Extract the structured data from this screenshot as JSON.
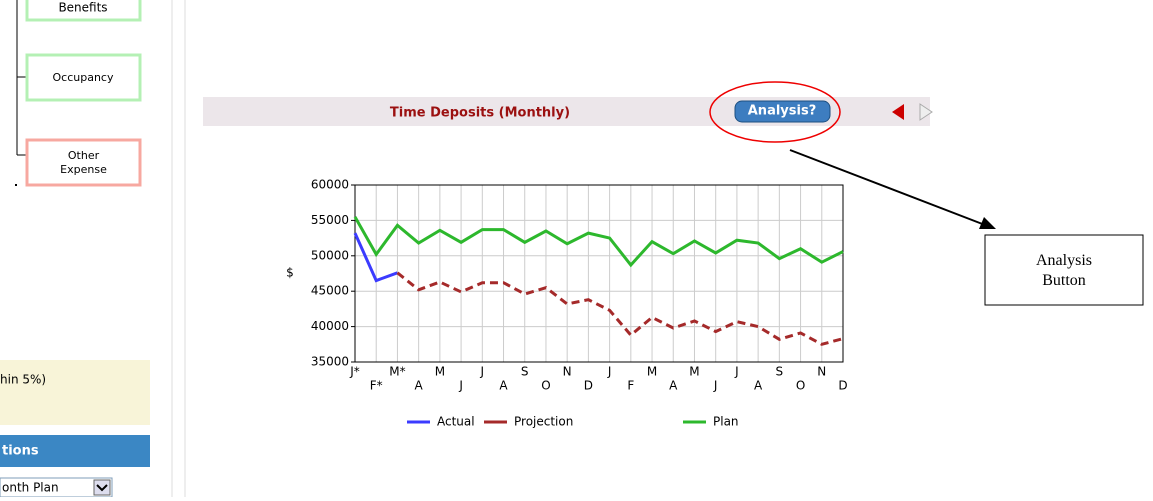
{
  "sidebar": {
    "tree_items": [
      "Benefits",
      "Occupancy",
      "Other Expense"
    ],
    "note": "hin 5%)",
    "section_header": "tions",
    "select_value": "onth Plan"
  },
  "panel": {
    "header_title": "Time Deposits (Monthly)",
    "analysis_button": "Analysis?"
  },
  "annotation": {
    "callout": "Analysis Button"
  },
  "chart_data": {
    "type": "line",
    "ylabel": "$",
    "categories": [
      "J*",
      "F*",
      "M*",
      "A",
      "M",
      "J",
      "J",
      "A",
      "S",
      "O",
      "N",
      "D",
      "J",
      "F",
      "M",
      "A",
      "M",
      "J",
      "J",
      "A",
      "S",
      "O",
      "N",
      "D"
    ],
    "series": [
      {
        "name": "Actual",
        "color": "#3b3bff",
        "dashed": false,
        "values": [
          53200,
          46500,
          47600,
          null,
          null,
          null,
          null,
          null,
          null,
          null,
          null,
          null,
          null,
          null,
          null,
          null,
          null,
          null,
          null,
          null,
          null,
          null,
          null,
          null
        ]
      },
      {
        "name": "Projection",
        "color": "#a52a2a",
        "dashed": true,
        "values": [
          null,
          null,
          47600,
          45200,
          46300,
          44900,
          46200,
          46200,
          44600,
          45500,
          43200,
          43800,
          42300,
          38800,
          41300,
          39800,
          40800,
          39300,
          40700,
          40000,
          38200,
          39100,
          37500,
          38300
        ]
      },
      {
        "name": "Plan",
        "color": "#2db82d",
        "dashed": false,
        "values": [
          55500,
          50200,
          54300,
          51800,
          53600,
          51900,
          53700,
          53700,
          51900,
          53500,
          51700,
          53200,
          52500,
          48700,
          52000,
          50300,
          52100,
          50400,
          52200,
          51800,
          49600,
          51000,
          49100,
          50600
        ]
      }
    ],
    "ylim": [
      35000,
      60000
    ],
    "yticks": [
      35000,
      40000,
      45000,
      50000,
      55000,
      60000
    ],
    "grid": true
  }
}
